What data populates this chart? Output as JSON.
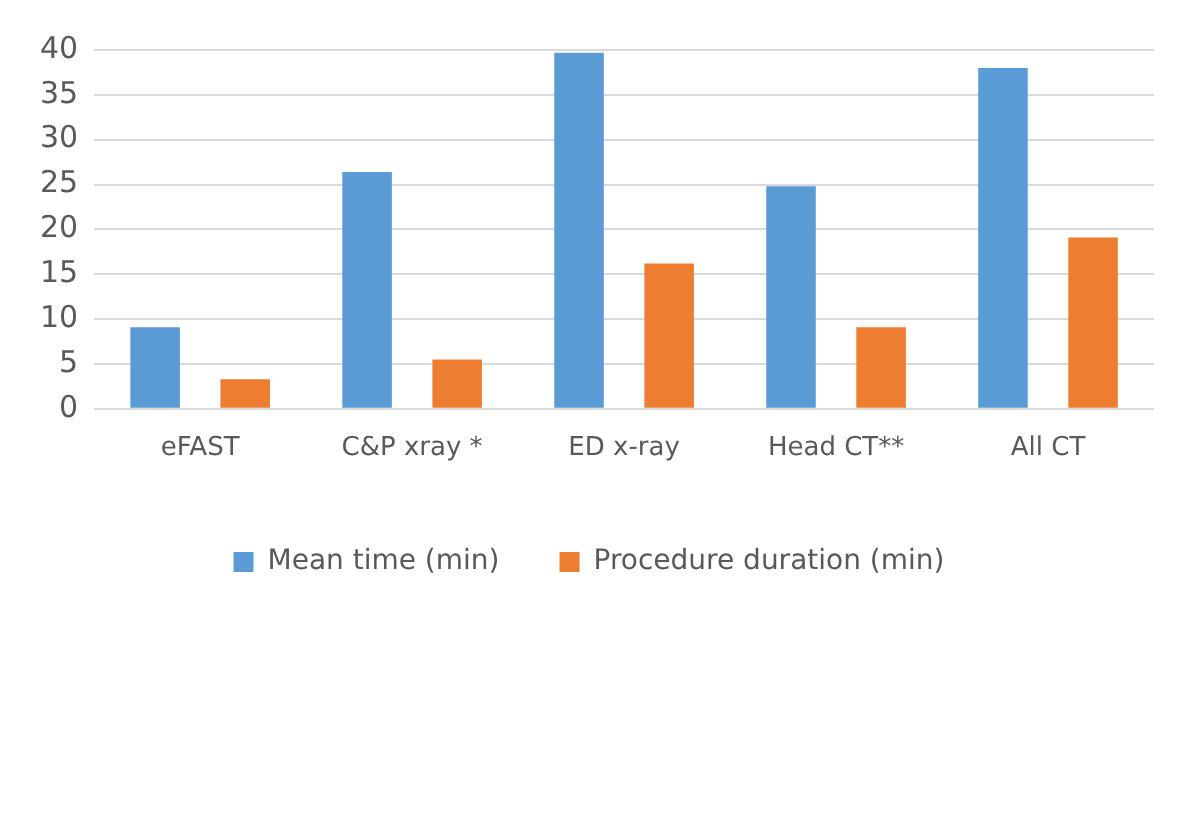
{
  "chart_data": {
    "type": "bar",
    "categories": [
      "eFAST",
      "C&P xray *",
      "ED x-ray",
      "Head CT**",
      "All CT"
    ],
    "series": [
      {
        "name": "Mean time (min)",
        "color": "#5b9bd5",
        "values": [
          9.1,
          26.4,
          39.7,
          24.8,
          38.0
        ]
      },
      {
        "name": "Procedure duration (min)",
        "color": "#ed7d31",
        "values": [
          3.3,
          5.5,
          16.2,
          9.1,
          19.1
        ]
      }
    ],
    "ylim": [
      0,
      40
    ],
    "yticks": [
      0,
      5,
      10,
      15,
      20,
      25,
      30,
      35,
      40
    ],
    "grid": "y",
    "legend": "bottom"
  }
}
